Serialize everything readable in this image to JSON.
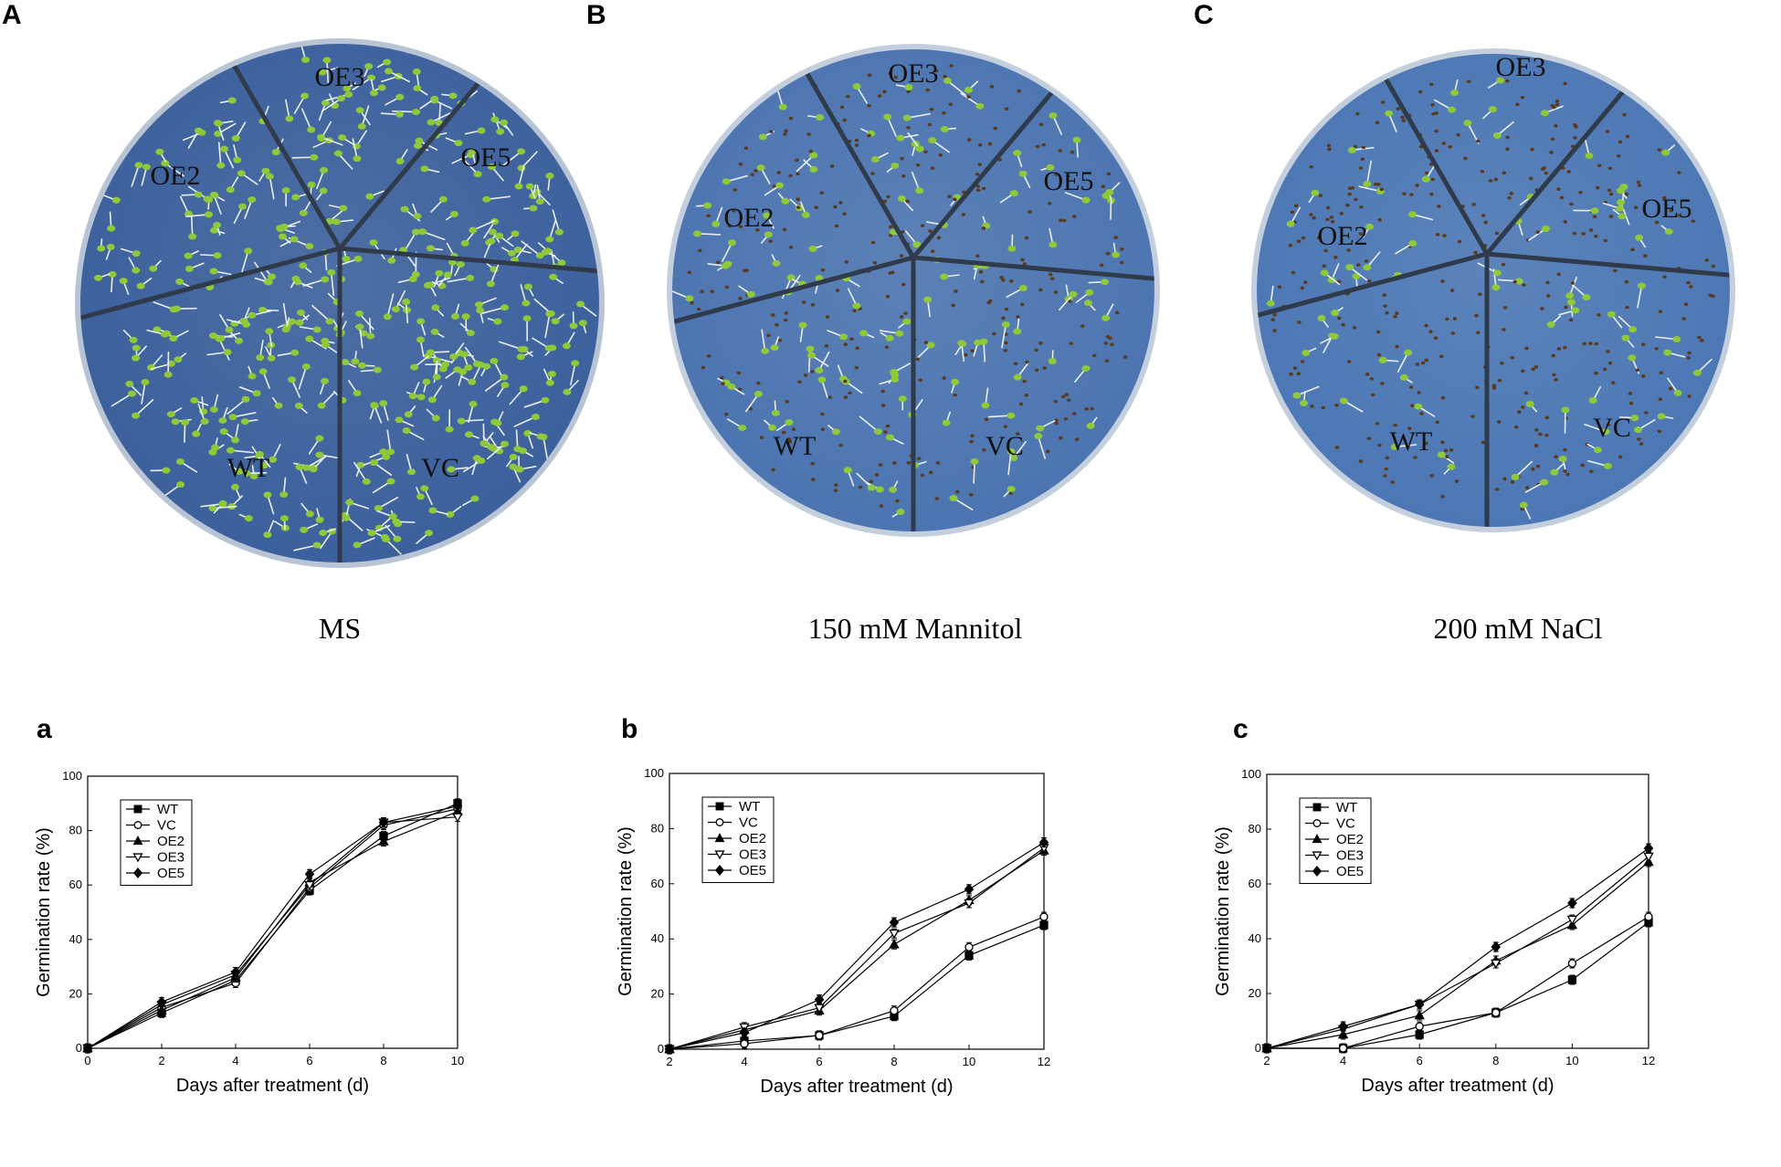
{
  "photo_panels": [
    {
      "letter": "A",
      "caption": "MS",
      "labels": [
        "OE3",
        "OE5",
        "VC",
        "WT",
        "OE2"
      ],
      "seedling_density": 1.0,
      "colors": {
        "plate": "#3a5f9c",
        "rim": "#b8c4d4",
        "seedling": "#8fc93a"
      }
    },
    {
      "letter": "B",
      "caption": "150 mM Mannitol",
      "labels": [
        "OE3",
        "OE5",
        "VC",
        "WT",
        "OE2"
      ],
      "seedling_density": 0.35,
      "colors": {
        "plate": "#4a73b0",
        "rim": "#c4cfdd",
        "seedling": "#8fc93a"
      }
    },
    {
      "letter": "C",
      "caption": "200 mM NaCl",
      "labels": [
        "OE3",
        "OE5",
        "VC",
        "WT",
        "OE2"
      ],
      "seedling_density": 0.2,
      "colors": {
        "plate": "#4a76b4",
        "rim": "#c4cfdd",
        "seedling": "#8fc93a"
      }
    }
  ],
  "chart_data": [
    {
      "letter": "a",
      "type": "line",
      "xlabel": "Days after treatment (d)",
      "ylabel": "Germination rate (%)",
      "xlim": [
        0,
        10
      ],
      "ylim": [
        0,
        100
      ],
      "xticks": [
        0,
        2,
        4,
        6,
        8,
        10
      ],
      "yticks": [
        0,
        20,
        40,
        60,
        80,
        100
      ],
      "legend_position": "top-left",
      "series": [
        {
          "name": "WT",
          "marker": "square-filled",
          "x": [
            0,
            2,
            4,
            6,
            8,
            10
          ],
          "y": [
            0,
            13,
            25,
            58,
            78,
            90
          ]
        },
        {
          "name": "VC",
          "marker": "circle-open",
          "x": [
            0,
            2,
            4,
            6,
            8,
            10
          ],
          "y": [
            0,
            15,
            24,
            59,
            82,
            88
          ]
        },
        {
          "name": "OE2",
          "marker": "triangle-filled",
          "x": [
            0,
            2,
            4,
            6,
            8,
            10
          ],
          "y": [
            0,
            14,
            26,
            61,
            76,
            87
          ]
        },
        {
          "name": "OE3",
          "marker": "triangle-open",
          "x": [
            0,
            2,
            4,
            6,
            8,
            10
          ],
          "y": [
            0,
            16,
            27,
            60,
            83,
            85
          ]
        },
        {
          "name": "OE5",
          "marker": "diamond-filled",
          "x": [
            0,
            2,
            4,
            6,
            8,
            10
          ],
          "y": [
            0,
            17,
            28,
            64,
            83,
            89
          ]
        }
      ]
    },
    {
      "letter": "b",
      "type": "line",
      "xlabel": "Days after treatment (d)",
      "ylabel": "Germination rate (%)",
      "xlim": [
        2,
        12
      ],
      "ylim": [
        0,
        100
      ],
      "xticks": [
        2,
        4,
        6,
        8,
        10,
        12
      ],
      "yticks": [
        0,
        20,
        40,
        60,
        80,
        100
      ],
      "legend_position": "top-left",
      "series": [
        {
          "name": "WT",
          "marker": "square-filled",
          "x": [
            2,
            4,
            6,
            8,
            10,
            12
          ],
          "y": [
            0,
            3,
            5,
            12,
            34,
            45
          ]
        },
        {
          "name": "VC",
          "marker": "circle-open",
          "x": [
            2,
            4,
            6,
            8,
            10,
            12
          ],
          "y": [
            0,
            2,
            5,
            14,
            37,
            48
          ]
        },
        {
          "name": "OE2",
          "marker": "triangle-filled",
          "x": [
            2,
            4,
            6,
            8,
            10,
            12
          ],
          "y": [
            0,
            7,
            14,
            38,
            54,
            72
          ]
        },
        {
          "name": "OE3",
          "marker": "triangle-open",
          "x": [
            2,
            4,
            6,
            8,
            10,
            12
          ],
          "y": [
            0,
            8,
            15,
            42,
            53,
            73
          ]
        },
        {
          "name": "OE5",
          "marker": "diamond-filled",
          "x": [
            2,
            4,
            6,
            8,
            10,
            12
          ],
          "y": [
            0,
            6,
            18,
            46,
            58,
            75
          ]
        }
      ]
    },
    {
      "letter": "c",
      "type": "line",
      "xlabel": "Days after treatment (d)",
      "ylabel": "Germination rate (%)",
      "xlim": [
        2,
        12
      ],
      "ylim": [
        0,
        100
      ],
      "xticks": [
        2,
        4,
        6,
        8,
        10,
        12
      ],
      "yticks": [
        0,
        20,
        40,
        60,
        80,
        100
      ],
      "legend_position": "top-left",
      "series": [
        {
          "name": "WT",
          "marker": "square-filled",
          "x": [
            2,
            4,
            6,
            8,
            10,
            12
          ],
          "y": [
            0,
            0,
            5,
            13,
            25,
            46
          ]
        },
        {
          "name": "VC",
          "marker": "circle-open",
          "x": [
            2,
            4,
            6,
            8,
            10,
            12
          ],
          "y": [
            0,
            0,
            8,
            13,
            31,
            48
          ]
        },
        {
          "name": "OE2",
          "marker": "triangle-filled",
          "x": [
            2,
            4,
            6,
            8,
            10,
            12
          ],
          "y": [
            0,
            5,
            12,
            32,
            45,
            68
          ]
        },
        {
          "name": "OE3",
          "marker": "triangle-open",
          "x": [
            2,
            4,
            6,
            8,
            10,
            12
          ],
          "y": [
            0,
            7,
            16,
            31,
            47,
            70
          ]
        },
        {
          "name": "OE5",
          "marker": "diamond-filled",
          "x": [
            2,
            4,
            6,
            8,
            10,
            12
          ],
          "y": [
            0,
            8,
            16,
            37,
            53,
            73
          ]
        }
      ]
    }
  ]
}
